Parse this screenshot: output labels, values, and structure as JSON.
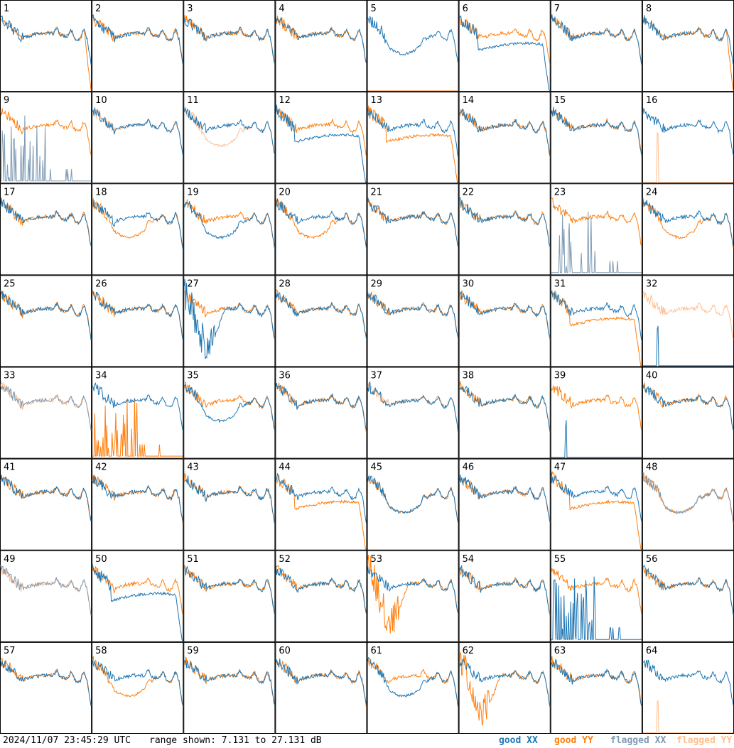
{
  "footer": {
    "timestamp": "2024/11/07 23:45:29 UTC",
    "range": "range shown: 7.131 to 27.131 dB"
  },
  "legend": [
    {
      "label": "good XX",
      "color": "#1f77b4"
    },
    {
      "label": "good YY",
      "color": "#ff7f0e"
    },
    {
      "label": "flagged XX",
      "color": "#7f9bb4"
    },
    {
      "label": "flagged YY",
      "color": "#ffbf8f"
    }
  ],
  "chart_data": {
    "type": "line",
    "title": "",
    "grid": {
      "rows": 8,
      "cols": 8
    },
    "ylim_db": [
      7.131,
      27.131
    ],
    "tiles": [
      {
        "n": 1,
        "xx": "good",
        "yy": "good",
        "xx_shape": "normal",
        "yy_shape": "dropend"
      },
      {
        "n": 2,
        "xx": "good",
        "yy": "good",
        "xx_shape": "normal",
        "yy_shape": "normal"
      },
      {
        "n": 3,
        "xx": "good",
        "yy": "good",
        "xx_shape": "normal",
        "yy_shape": "normal"
      },
      {
        "n": 4,
        "xx": "good",
        "yy": "good",
        "xx_shape": "normal",
        "yy_shape": "normal"
      },
      {
        "n": 5,
        "xx": "good",
        "yy": "flagged",
        "xx_shape": "dip",
        "yy_shape": "flat"
      },
      {
        "n": 6,
        "xx": "good",
        "yy": "good",
        "xx_shape": "low_drop",
        "yy_shape": "normal"
      },
      {
        "n": 7,
        "xx": "good",
        "yy": "good",
        "xx_shape": "normal",
        "yy_shape": "normal"
      },
      {
        "n": 8,
        "xx": "good",
        "yy": "good",
        "xx_shape": "normal",
        "yy_shape": "dropend"
      },
      {
        "n": 9,
        "xx": "flagged",
        "yy": "good",
        "xx_shape": "spikes",
        "yy_shape": "normal"
      },
      {
        "n": 10,
        "xx": "good",
        "yy": "flagged",
        "xx_shape": "normal",
        "yy_shape": "normal"
      },
      {
        "n": 11,
        "xx": "good",
        "yy": "flagged",
        "xx_shape": "normal",
        "yy_shape": "dip"
      },
      {
        "n": 12,
        "xx": "good",
        "yy": "good",
        "xx_shape": "low_drop",
        "yy_shape": "normal"
      },
      {
        "n": 13,
        "xx": "good",
        "yy": "good",
        "xx_shape": "normal",
        "yy_shape": "low_drop"
      },
      {
        "n": 14,
        "xx": "good",
        "yy": "good",
        "xx_shape": "normal",
        "yy_shape": "normal"
      },
      {
        "n": 15,
        "xx": "good",
        "yy": "good",
        "xx_shape": "normal",
        "yy_shape": "normal"
      },
      {
        "n": 16,
        "xx": "good",
        "yy": "flagged",
        "xx_shape": "normal",
        "yy_shape": "spike1"
      },
      {
        "n": 17,
        "xx": "good",
        "yy": "good",
        "xx_shape": "normal",
        "yy_shape": "normal"
      },
      {
        "n": 18,
        "xx": "good",
        "yy": "good",
        "xx_shape": "normal",
        "yy_shape": "dip"
      },
      {
        "n": 19,
        "xx": "good",
        "yy": "good",
        "xx_shape": "dip",
        "yy_shape": "normal"
      },
      {
        "n": 20,
        "xx": "good",
        "yy": "good",
        "xx_shape": "normal",
        "yy_shape": "dip"
      },
      {
        "n": 21,
        "xx": "good",
        "yy": "good",
        "xx_shape": "normal",
        "yy_shape": "normal"
      },
      {
        "n": 22,
        "xx": "good",
        "yy": "good",
        "xx_shape": "normal",
        "yy_shape": "normal"
      },
      {
        "n": 23,
        "xx": "flagged",
        "yy": "good",
        "xx_shape": "spikes",
        "yy_shape": "normal"
      },
      {
        "n": 24,
        "xx": "good",
        "yy": "good",
        "xx_shape": "normal",
        "yy_shape": "dip"
      },
      {
        "n": 25,
        "xx": "good",
        "yy": "good",
        "xx_shape": "normal",
        "yy_shape": "normal"
      },
      {
        "n": 26,
        "xx": "good",
        "yy": "good",
        "xx_shape": "normal",
        "yy_shape": "normal"
      },
      {
        "n": 27,
        "xx": "good",
        "yy": "good",
        "xx_shape": "noisydip",
        "yy_shape": "normal"
      },
      {
        "n": 28,
        "xx": "good",
        "yy": "good",
        "xx_shape": "normal",
        "yy_shape": "normal"
      },
      {
        "n": 29,
        "xx": "good",
        "yy": "good",
        "xx_shape": "normal",
        "yy_shape": "normal"
      },
      {
        "n": 30,
        "xx": "good",
        "yy": "good",
        "xx_shape": "normal",
        "yy_shape": "normal"
      },
      {
        "n": 31,
        "xx": "good",
        "yy": "good",
        "xx_shape": "normal",
        "yy_shape": "low_drop"
      },
      {
        "n": 32,
        "xx": "good",
        "yy": "flagged",
        "xx_shape": "spike1",
        "yy_shape": "normal"
      },
      {
        "n": 33,
        "xx": "flagged",
        "yy": "flagged",
        "xx_shape": "normal",
        "yy_shape": "normal"
      },
      {
        "n": 34,
        "xx": "good",
        "yy": "good",
        "xx_shape": "normal",
        "yy_shape": "spikes"
      },
      {
        "n": 35,
        "xx": "good",
        "yy": "good",
        "xx_shape": "dip",
        "yy_shape": "normal"
      },
      {
        "n": 36,
        "xx": "good",
        "yy": "good",
        "xx_shape": "normal",
        "yy_shape": "normal"
      },
      {
        "n": 37,
        "xx": "good",
        "yy": "flagged",
        "xx_shape": "normal",
        "yy_shape": "normal"
      },
      {
        "n": 38,
        "xx": "good",
        "yy": "good",
        "xx_shape": "normal",
        "yy_shape": "normal"
      },
      {
        "n": 39,
        "xx": "good",
        "yy": "good",
        "xx_shape": "spike1",
        "yy_shape": "normal"
      },
      {
        "n": 40,
        "xx": "good",
        "yy": "good",
        "xx_shape": "normal",
        "yy_shape": "normal"
      },
      {
        "n": 41,
        "xx": "good",
        "yy": "good",
        "xx_shape": "normal",
        "yy_shape": "normal"
      },
      {
        "n": 42,
        "xx": "good",
        "yy": "good",
        "xx_shape": "normal",
        "yy_shape": "normal"
      },
      {
        "n": 43,
        "xx": "good",
        "yy": "good",
        "xx_shape": "normal",
        "yy_shape": "normal"
      },
      {
        "n": 44,
        "xx": "good",
        "yy": "good",
        "xx_shape": "normal",
        "yy_shape": "low_drop"
      },
      {
        "n": 45,
        "xx": "good",
        "yy": "good",
        "xx_shape": "dip",
        "yy_shape": "dip"
      },
      {
        "n": 46,
        "xx": "good",
        "yy": "good",
        "xx_shape": "normal",
        "yy_shape": "normal"
      },
      {
        "n": 47,
        "xx": "good",
        "yy": "good",
        "xx_shape": "normal",
        "yy_shape": "low_drop"
      },
      {
        "n": 48,
        "xx": "flagged",
        "yy": "good",
        "xx_shape": "dip",
        "yy_shape": "dip"
      },
      {
        "n": 49,
        "xx": "flagged",
        "yy": "flagged",
        "xx_shape": "normal",
        "yy_shape": "normal"
      },
      {
        "n": 50,
        "xx": "good",
        "yy": "good",
        "xx_shape": "low_drop",
        "yy_shape": "normal"
      },
      {
        "n": 51,
        "xx": "good",
        "yy": "good",
        "xx_shape": "normal",
        "yy_shape": "normal"
      },
      {
        "n": 52,
        "xx": "good",
        "yy": "good",
        "xx_shape": "normal",
        "yy_shape": "normal"
      },
      {
        "n": 53,
        "xx": "good",
        "yy": "good",
        "xx_shape": "normal",
        "yy_shape": "noisydip"
      },
      {
        "n": 54,
        "xx": "good",
        "yy": "good",
        "xx_shape": "normal",
        "yy_shape": "normal"
      },
      {
        "n": 55,
        "xx": "good",
        "yy": "good",
        "xx_shape": "spikes",
        "yy_shape": "normal"
      },
      {
        "n": 56,
        "xx": "good",
        "yy": "good",
        "xx_shape": "normal",
        "yy_shape": "normal"
      },
      {
        "n": 57,
        "xx": "good",
        "yy": "good",
        "xx_shape": "normal",
        "yy_shape": "normal"
      },
      {
        "n": 58,
        "xx": "good",
        "yy": "good",
        "xx_shape": "normal",
        "yy_shape": "dip"
      },
      {
        "n": 59,
        "xx": "good",
        "yy": "good",
        "xx_shape": "normal",
        "yy_shape": "normal"
      },
      {
        "n": 60,
        "xx": "good",
        "yy": "good",
        "xx_shape": "normal",
        "yy_shape": "normal"
      },
      {
        "n": 61,
        "xx": "good",
        "yy": "good",
        "xx_shape": "dip",
        "yy_shape": "normal"
      },
      {
        "n": 62,
        "xx": "good",
        "yy": "good",
        "xx_shape": "normal",
        "yy_shape": "noisydip"
      },
      {
        "n": 63,
        "xx": "good",
        "yy": "good",
        "xx_shape": "normal",
        "yy_shape": "normal"
      },
      {
        "n": 64,
        "xx": "good",
        "yy": "flagged",
        "xx_shape": "normal",
        "yy_shape": "spike1"
      }
    ]
  }
}
